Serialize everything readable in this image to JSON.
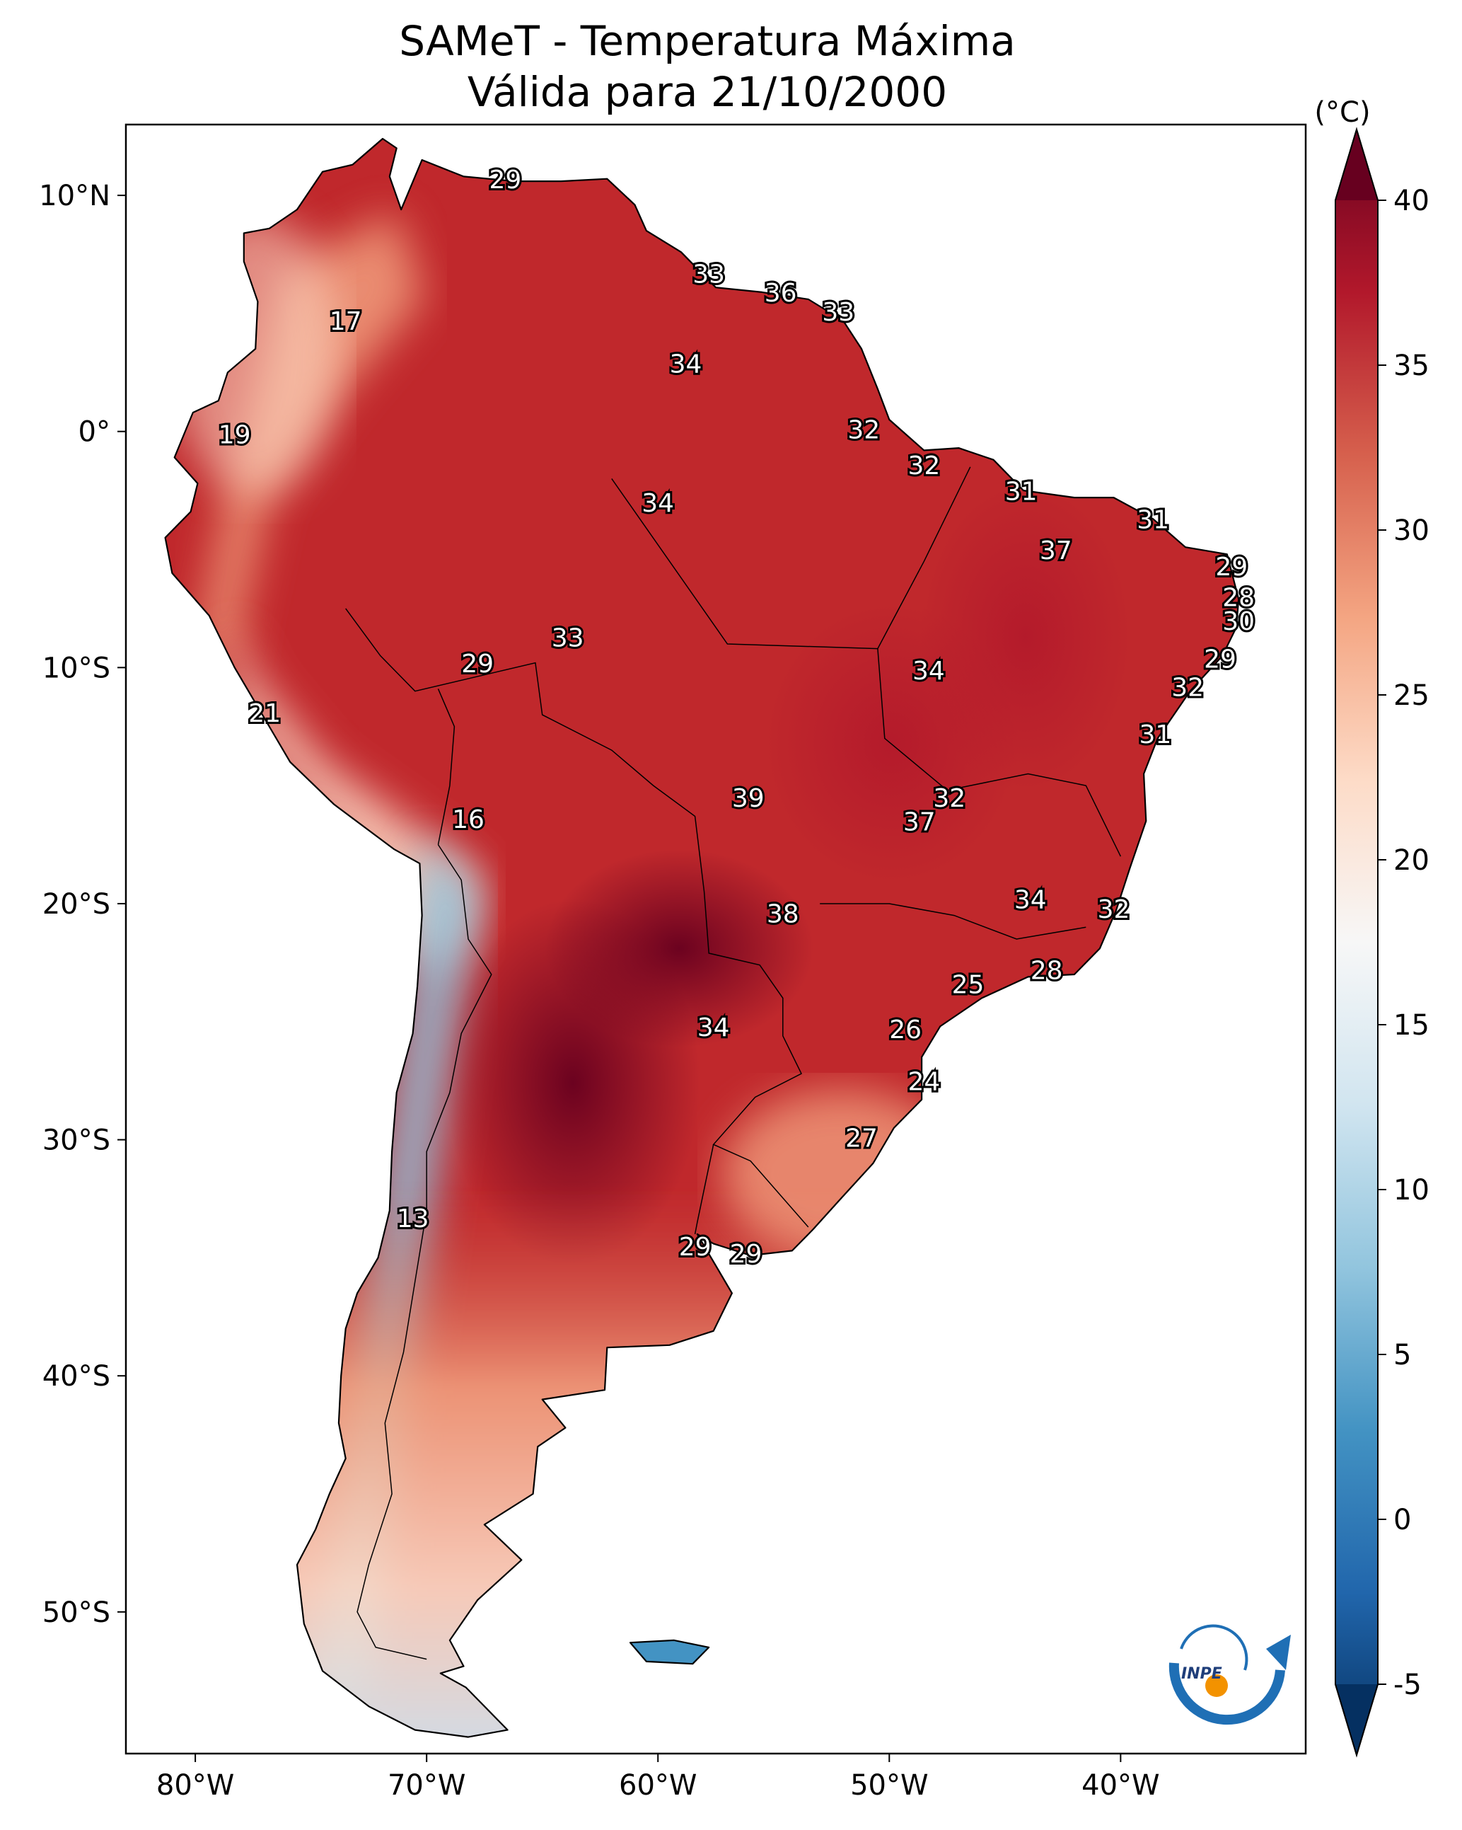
{
  "title_line1": "SAMeT - Temperatura Máxima",
  "title_line2": "Válida para 21/10/2000",
  "colorbar": {
    "unit": "(°C)",
    "min": -5,
    "max": 40,
    "ticks": [
      -5,
      0,
      5,
      10,
      15,
      20,
      25,
      30,
      35,
      40
    ],
    "extend": "both",
    "colormap": [
      "#053061",
      "#2166ac",
      "#4393c3",
      "#92c5de",
      "#d1e5f0",
      "#f7f7f7",
      "#fddbc7",
      "#f4a582",
      "#d6604d",
      "#b2182b",
      "#67001f"
    ]
  },
  "axes": {
    "lon_range": [
      -83,
      -32
    ],
    "lat_range": [
      -56,
      13
    ],
    "lon_ticks": [
      {
        "value": -80,
        "label": "80°W"
      },
      {
        "value": -70,
        "label": "70°W"
      },
      {
        "value": -60,
        "label": "60°W"
      },
      {
        "value": -50,
        "label": "50°W"
      },
      {
        "value": -40,
        "label": "40°W"
      }
    ],
    "lat_ticks": [
      {
        "value": 10,
        "label": "10°N"
      },
      {
        "value": 0,
        "label": "0°"
      },
      {
        "value": -10,
        "label": "10°S"
      },
      {
        "value": -20,
        "label": "20°S"
      },
      {
        "value": -30,
        "label": "30°S"
      },
      {
        "value": -40,
        "label": "40°S"
      },
      {
        "value": -50,
        "label": "50°S"
      }
    ]
  },
  "stations": [
    {
      "lon": -66.6,
      "lat": 10.6,
      "value": "29"
    },
    {
      "lon": -57.8,
      "lat": 6.6,
      "value": "33"
    },
    {
      "lon": -54.7,
      "lat": 5.8,
      "value": "36"
    },
    {
      "lon": -52.2,
      "lat": 5.0,
      "value": "33"
    },
    {
      "lon": -73.5,
      "lat": 4.6,
      "value": "17"
    },
    {
      "lon": -58.8,
      "lat": 2.8,
      "value": "34"
    },
    {
      "lon": -78.3,
      "lat": -0.2,
      "value": "19"
    },
    {
      "lon": -51.1,
      "lat": 0.0,
      "value": "32"
    },
    {
      "lon": -48.5,
      "lat": -1.5,
      "value": "32"
    },
    {
      "lon": -44.3,
      "lat": -2.6,
      "value": "31"
    },
    {
      "lon": -60.0,
      "lat": -3.1,
      "value": "34"
    },
    {
      "lon": -38.6,
      "lat": -3.8,
      "value": "31"
    },
    {
      "lon": -42.8,
      "lat": -5.1,
      "value": "37"
    },
    {
      "lon": -35.2,
      "lat": -5.8,
      "value": "29"
    },
    {
      "lon": -34.9,
      "lat": -7.1,
      "value": "28"
    },
    {
      "lon": -34.9,
      "lat": -8.1,
      "value": "30"
    },
    {
      "lon": -63.9,
      "lat": -8.8,
      "value": "33"
    },
    {
      "lon": -67.8,
      "lat": -9.9,
      "value": "29"
    },
    {
      "lon": -35.7,
      "lat": -9.7,
      "value": "29"
    },
    {
      "lon": -48.3,
      "lat": -10.2,
      "value": "34"
    },
    {
      "lon": -37.1,
      "lat": -10.9,
      "value": "32"
    },
    {
      "lon": -77.0,
      "lat": -12.0,
      "value": "21"
    },
    {
      "lon": -38.5,
      "lat": -12.9,
      "value": "31"
    },
    {
      "lon": -56.1,
      "lat": -15.6,
      "value": "39"
    },
    {
      "lon": -47.4,
      "lat": -15.6,
      "value": "32"
    },
    {
      "lon": -48.7,
      "lat": -16.6,
      "value": "37"
    },
    {
      "lon": -68.2,
      "lat": -16.5,
      "value": "16"
    },
    {
      "lon": -43.9,
      "lat": -19.9,
      "value": "34"
    },
    {
      "lon": -40.3,
      "lat": -20.3,
      "value": "32"
    },
    {
      "lon": -54.6,
      "lat": -20.5,
      "value": "38"
    },
    {
      "lon": -43.2,
      "lat": -22.9,
      "value": "28"
    },
    {
      "lon": -46.6,
      "lat": -23.5,
      "value": "25"
    },
    {
      "lon": -57.6,
      "lat": -25.3,
      "value": "34"
    },
    {
      "lon": -49.3,
      "lat": -25.4,
      "value": "26"
    },
    {
      "lon": -48.5,
      "lat": -27.6,
      "value": "24"
    },
    {
      "lon": -51.2,
      "lat": -30.0,
      "value": "27"
    },
    {
      "lon": -70.6,
      "lat": -33.4,
      "value": "13"
    },
    {
      "lon": -58.4,
      "lat": -34.6,
      "value": "29"
    },
    {
      "lon": -56.2,
      "lat": -34.9,
      "value": "29"
    }
  ]
}
